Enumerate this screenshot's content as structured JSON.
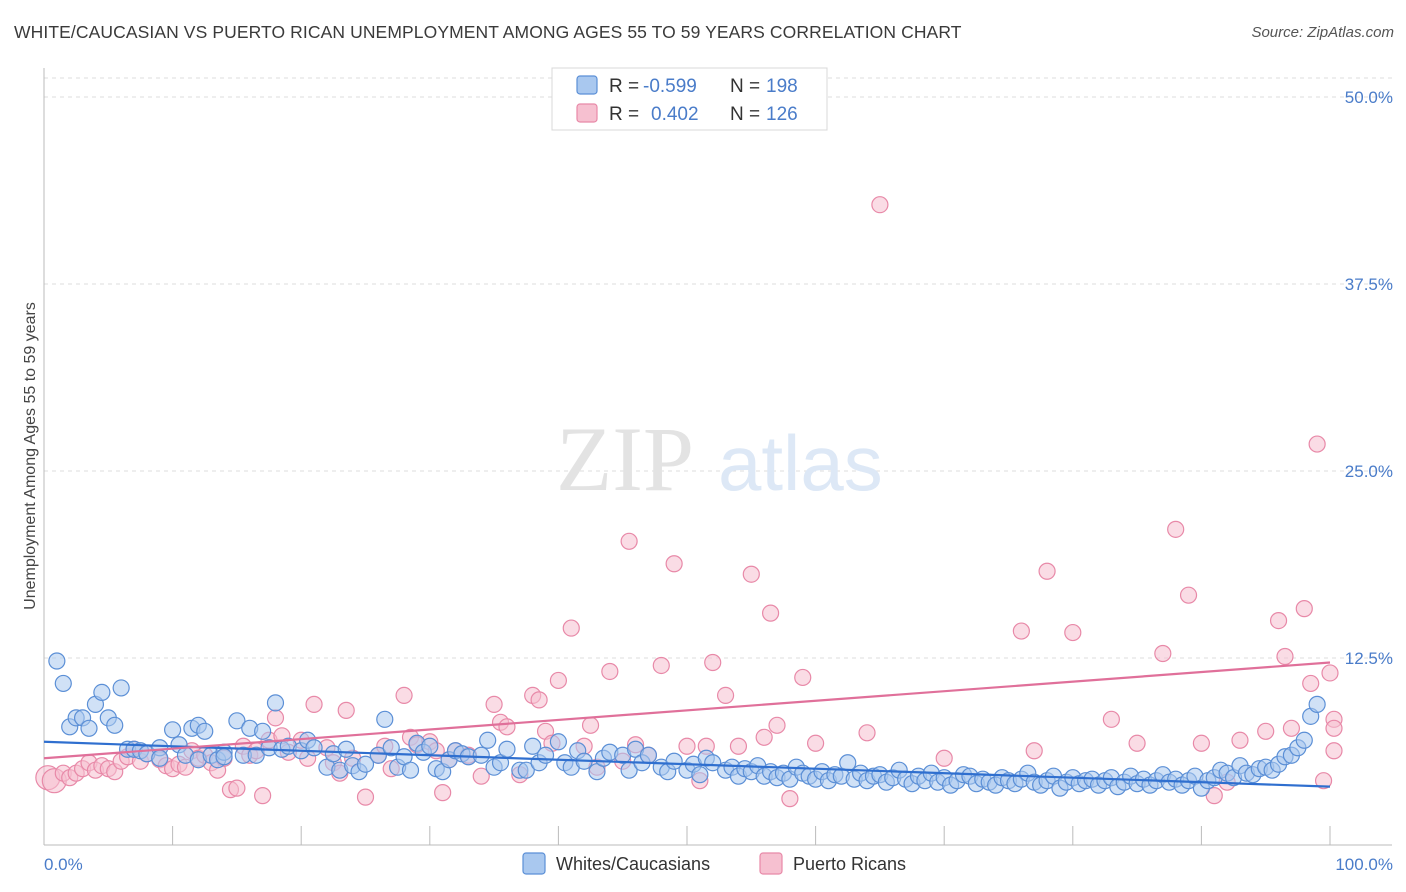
{
  "title": "WHITE/CAUCASIAN VS PUERTO RICAN UNEMPLOYMENT AMONG AGES 55 TO 59 YEARS CORRELATION CHART",
  "source": "Source: ZipAtlas.com",
  "watermark": {
    "zip": "ZIP",
    "atlas": "atlas"
  },
  "colors": {
    "blue_fill": "#a9c8ef",
    "blue_stroke": "#5b8fd6",
    "blue_line": "#2f6fcf",
    "pink_fill": "#f6c0d0",
    "pink_stroke": "#e889a8",
    "pink_line": "#e0709a",
    "tick_text": "#4a7cc9",
    "grid": "#dddddd"
  },
  "legend_top": {
    "rows": [
      {
        "r_label": "R =",
        "r_value": "-0.599",
        "n_label": "N =",
        "n_value": "198"
      },
      {
        "r_label": "R =",
        "r_value": "0.402",
        "n_label": "N =",
        "n_value": "126"
      }
    ]
  },
  "chart_data": {
    "type": "scatter",
    "title": "WHITE/CAUCASIAN VS PUERTO RICAN UNEMPLOYMENT AMONG AGES 55 TO 59 YEARS CORRELATION CHART",
    "xlabel": "",
    "ylabel": "Unemployment Among Ages 55 to 59 years",
    "xlim": [
      0,
      100
    ],
    "ylim": [
      0,
      50
    ],
    "x_tick_labels": [
      "0.0%",
      "100.0%"
    ],
    "y_ticks": [
      12.5,
      25.0,
      37.5,
      50.0
    ],
    "y_tick_labels": [
      "12.5%",
      "25.0%",
      "37.5%",
      "50.0%"
    ],
    "grid": true,
    "legend_position": "bottom",
    "series": [
      {
        "name": "Whites/Caucasians",
        "R": -0.599,
        "N": 198,
        "trend": {
          "x": [
            0,
            100
          ],
          "y": [
            6.9,
            3.9
          ]
        },
        "points": [
          [
            1,
            12.3
          ],
          [
            1.5,
            10.8
          ],
          [
            2,
            7.9
          ],
          [
            2.5,
            8.5
          ],
          [
            3,
            8.5
          ],
          [
            3.5,
            7.8
          ],
          [
            4,
            9.4
          ],
          [
            4.5,
            10.2
          ],
          [
            5,
            8.5
          ],
          [
            5.5,
            8.0
          ],
          [
            6,
            10.5
          ],
          [
            6.5,
            6.4
          ],
          [
            7,
            6.4
          ],
          [
            7.5,
            6.3
          ],
          [
            8,
            6.1
          ],
          [
            9,
            6.5
          ],
          [
            9,
            5.8
          ],
          [
            10,
            7.7
          ],
          [
            10.5,
            6.7
          ],
          [
            11,
            6.0
          ],
          [
            11.5,
            7.8
          ],
          [
            12,
            8.0
          ],
          [
            12,
            5.7
          ],
          [
            12.5,
            7.6
          ],
          [
            13,
            6.0
          ],
          [
            13.5,
            5.7
          ],
          [
            14,
            6.2
          ],
          [
            14,
            5.9
          ],
          [
            15,
            8.3
          ],
          [
            15.5,
            6.0
          ],
          [
            16,
            7.8
          ],
          [
            16.5,
            6.0
          ],
          [
            17,
            7.6
          ],
          [
            17.5,
            6.5
          ],
          [
            18,
            9.5
          ],
          [
            18.5,
            6.4
          ],
          [
            19,
            6.6
          ],
          [
            20,
            6.3
          ],
          [
            20.5,
            7.0
          ],
          [
            21,
            6.5
          ],
          [
            22,
            5.2
          ],
          [
            22.5,
            6.1
          ],
          [
            23,
            5.0
          ],
          [
            23.5,
            6.4
          ],
          [
            24,
            5.3
          ],
          [
            24.5,
            4.9
          ],
          [
            25,
            5.4
          ],
          [
            26,
            6.0
          ],
          [
            26.5,
            8.4
          ],
          [
            27,
            6.5
          ],
          [
            27.5,
            5.2
          ],
          [
            28,
            5.9
          ],
          [
            28.5,
            5.0
          ],
          [
            29,
            6.8
          ],
          [
            29.5,
            6.2
          ],
          [
            30,
            6.6
          ],
          [
            30.5,
            5.1
          ],
          [
            31,
            4.9
          ],
          [
            31.5,
            5.7
          ],
          [
            32,
            6.3
          ],
          [
            32.5,
            6.1
          ],
          [
            33,
            5.9
          ],
          [
            34,
            6.0
          ],
          [
            34.5,
            7.0
          ],
          [
            35,
            5.2
          ],
          [
            35.5,
            5.5
          ],
          [
            36,
            6.4
          ],
          [
            37,
            5.0
          ],
          [
            37.5,
            5.0
          ],
          [
            38,
            6.6
          ],
          [
            38.5,
            5.5
          ],
          [
            39,
            6.0
          ],
          [
            40,
            6.9
          ],
          [
            40.5,
            5.5
          ],
          [
            41,
            5.2
          ],
          [
            41.5,
            6.3
          ],
          [
            42,
            5.6
          ],
          [
            43,
            4.9
          ],
          [
            43.5,
            5.8
          ],
          [
            44,
            6.2
          ],
          [
            45,
            6.0
          ],
          [
            45.5,
            5.0
          ],
          [
            46,
            6.4
          ],
          [
            46.5,
            5.5
          ],
          [
            47,
            6.0
          ],
          [
            48,
            5.2
          ],
          [
            48.5,
            4.9
          ],
          [
            49,
            5.6
          ],
          [
            50,
            5.0
          ],
          [
            50.5,
            5.4
          ],
          [
            51,
            4.7
          ],
          [
            51.5,
            5.8
          ],
          [
            52,
            5.5
          ],
          [
            53,
            5.0
          ],
          [
            53.5,
            5.2
          ],
          [
            54,
            4.6
          ],
          [
            54.5,
            5.1
          ],
          [
            55,
            4.9
          ],
          [
            55.5,
            5.3
          ],
          [
            56,
            4.6
          ],
          [
            56.5,
            4.9
          ],
          [
            57,
            4.5
          ],
          [
            57.5,
            4.8
          ],
          [
            58,
            4.4
          ],
          [
            58.5,
            5.2
          ],
          [
            59,
            4.8
          ],
          [
            59.5,
            4.6
          ],
          [
            60,
            4.4
          ],
          [
            60.5,
            4.9
          ],
          [
            61,
            4.3
          ],
          [
            61.5,
            4.7
          ],
          [
            62,
            4.6
          ],
          [
            62.5,
            5.5
          ],
          [
            63,
            4.4
          ],
          [
            63.5,
            4.8
          ],
          [
            64,
            4.3
          ],
          [
            64.5,
            4.6
          ],
          [
            65,
            4.7
          ],
          [
            65.5,
            4.2
          ],
          [
            66,
            4.5
          ],
          [
            66.5,
            5.0
          ],
          [
            67,
            4.4
          ],
          [
            67.5,
            4.1
          ],
          [
            68,
            4.6
          ],
          [
            68.5,
            4.3
          ],
          [
            69,
            4.8
          ],
          [
            69.5,
            4.2
          ],
          [
            70,
            4.5
          ],
          [
            70.5,
            4.0
          ],
          [
            71,
            4.3
          ],
          [
            71.5,
            4.7
          ],
          [
            72,
            4.6
          ],
          [
            72.5,
            4.1
          ],
          [
            73,
            4.4
          ],
          [
            73.5,
            4.2
          ],
          [
            74,
            4.0
          ],
          [
            74.5,
            4.5
          ],
          [
            75,
            4.3
          ],
          [
            75.5,
            4.1
          ],
          [
            76,
            4.4
          ],
          [
            76.5,
            4.8
          ],
          [
            77,
            4.2
          ],
          [
            77.5,
            4.0
          ],
          [
            78,
            4.3
          ],
          [
            78.5,
            4.6
          ],
          [
            79,
            3.8
          ],
          [
            79.5,
            4.2
          ],
          [
            80,
            4.5
          ],
          [
            80.5,
            4.1
          ],
          [
            81,
            4.3
          ],
          [
            81.5,
            4.4
          ],
          [
            82,
            4.0
          ],
          [
            82.5,
            4.3
          ],
          [
            83,
            4.5
          ],
          [
            83.5,
            3.9
          ],
          [
            84,
            4.2
          ],
          [
            84.5,
            4.6
          ],
          [
            85,
            4.1
          ],
          [
            85.5,
            4.4
          ],
          [
            86,
            4.0
          ],
          [
            86.5,
            4.3
          ],
          [
            87,
            4.7
          ],
          [
            87.5,
            4.2
          ],
          [
            88,
            4.4
          ],
          [
            88.5,
            4.0
          ],
          [
            89,
            4.3
          ],
          [
            89.5,
            4.6
          ],
          [
            90,
            3.8
          ],
          [
            90.5,
            4.3
          ],
          [
            91,
            4.5
          ],
          [
            91.5,
            5.0
          ],
          [
            92,
            4.8
          ],
          [
            92.5,
            4.5
          ],
          [
            93,
            5.3
          ],
          [
            93.5,
            4.8
          ],
          [
            94,
            4.7
          ],
          [
            94.5,
            5.1
          ],
          [
            95,
            5.2
          ],
          [
            95.5,
            5.0
          ],
          [
            96,
            5.4
          ],
          [
            96.5,
            5.9
          ],
          [
            97,
            6.0
          ],
          [
            97.5,
            6.5
          ],
          [
            98,
            7.0
          ],
          [
            98.5,
            8.6
          ],
          [
            99,
            9.4
          ]
        ]
      },
      {
        "name": "Puerto Ricans",
        "R": 0.402,
        "N": 126,
        "trend": {
          "x": [
            0,
            100
          ],
          "y": [
            5.8,
            12.2
          ]
        },
        "points": [
          [
            0.3,
            4.5
          ],
          [
            0.8,
            4.3
          ],
          [
            1.5,
            4.8
          ],
          [
            2,
            4.5
          ],
          [
            2.5,
            4.8
          ],
          [
            3,
            5.1
          ],
          [
            3.5,
            5.5
          ],
          [
            4,
            5.0
          ],
          [
            4.5,
            5.3
          ],
          [
            5,
            5.1
          ],
          [
            5.5,
            4.9
          ],
          [
            6,
            5.6
          ],
          [
            6.5,
            5.9
          ],
          [
            7,
            6.4
          ],
          [
            7.5,
            5.6
          ],
          [
            8,
            6.1
          ],
          [
            9,
            5.7
          ],
          [
            9.5,
            5.3
          ],
          [
            10,
            5.1
          ],
          [
            10.5,
            5.4
          ],
          [
            11,
            5.2
          ],
          [
            11.5,
            6.3
          ],
          [
            12,
            5.8
          ],
          [
            12.5,
            6.0
          ],
          [
            13,
            5.5
          ],
          [
            13.5,
            5.0
          ],
          [
            14,
            5.8
          ],
          [
            14.5,
            3.7
          ],
          [
            15,
            3.8
          ],
          [
            15.5,
            6.6
          ],
          [
            16,
            6.0
          ],
          [
            16.5,
            6.3
          ],
          [
            17,
            3.3
          ],
          [
            17.5,
            7.0
          ],
          [
            18,
            8.5
          ],
          [
            18.5,
            7.3
          ],
          [
            19,
            6.2
          ],
          [
            20,
            7.0
          ],
          [
            20.5,
            5.8
          ],
          [
            21,
            9.4
          ],
          [
            22,
            6.5
          ],
          [
            22.5,
            5.5
          ],
          [
            23,
            4.8
          ],
          [
            23.5,
            9.0
          ],
          [
            24,
            5.8
          ],
          [
            25,
            3.2
          ],
          [
            26,
            6.0
          ],
          [
            26.5,
            6.6
          ],
          [
            27,
            5.1
          ],
          [
            28,
            10.0
          ],
          [
            28.5,
            7.2
          ],
          [
            29,
            6.7
          ],
          [
            30,
            6.9
          ],
          [
            30.5,
            6.3
          ],
          [
            31,
            3.5
          ],
          [
            31.5,
            5.7
          ],
          [
            32,
            6.3
          ],
          [
            33,
            6.0
          ],
          [
            34,
            4.6
          ],
          [
            35,
            9.4
          ],
          [
            35.5,
            8.2
          ],
          [
            36,
            7.9
          ],
          [
            37,
            4.7
          ],
          [
            38,
            10.0
          ],
          [
            38.5,
            9.7
          ],
          [
            39,
            7.6
          ],
          [
            39.5,
            6.8
          ],
          [
            40,
            11.0
          ],
          [
            41,
            14.5
          ],
          [
            42,
            6.6
          ],
          [
            42.5,
            8.0
          ],
          [
            43,
            5.2
          ],
          [
            44,
            11.6
          ],
          [
            45,
            5.6
          ],
          [
            45.5,
            20.3
          ],
          [
            46,
            6.7
          ],
          [
            47,
            6.0
          ],
          [
            48,
            12.0
          ],
          [
            49,
            18.8
          ],
          [
            50,
            6.6
          ],
          [
            51,
            4.3
          ],
          [
            51.5,
            6.6
          ],
          [
            52,
            12.2
          ],
          [
            53,
            10.0
          ],
          [
            54,
            6.6
          ],
          [
            55,
            18.1
          ],
          [
            56,
            7.2
          ],
          [
            56.5,
            15.5
          ],
          [
            57,
            8.0
          ],
          [
            58,
            3.1
          ],
          [
            59,
            11.2
          ],
          [
            60,
            6.8
          ],
          [
            64,
            7.5
          ],
          [
            65,
            42.8
          ],
          [
            70,
            5.8
          ],
          [
            76,
            14.3
          ],
          [
            77,
            6.3
          ],
          [
            78,
            18.3
          ],
          [
            80,
            14.2
          ],
          [
            83,
            8.4
          ],
          [
            85,
            6.8
          ],
          [
            87,
            12.8
          ],
          [
            88,
            21.1
          ],
          [
            89,
            16.7
          ],
          [
            90,
            6.8
          ],
          [
            91,
            3.3
          ],
          [
            92,
            4.2
          ],
          [
            93,
            7.0
          ],
          [
            95,
            7.6
          ],
          [
            96,
            15.0
          ],
          [
            96.5,
            12.6
          ],
          [
            97,
            7.8
          ],
          [
            98,
            15.8
          ],
          [
            98.5,
            10.8
          ],
          [
            99,
            26.8
          ],
          [
            99.5,
            4.3
          ],
          [
            100,
            11.5
          ],
          [
            100.5,
            8.4
          ],
          [
            101,
            7.8
          ],
          [
            101.5,
            6.3
          ]
        ]
      }
    ]
  }
}
